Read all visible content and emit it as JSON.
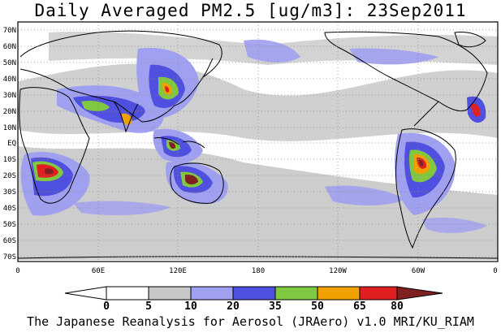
{
  "title": "Daily Averaged PM2.5 [ug/m3]: 23Sep2011",
  "footer": "The Japanese Reanalysis for Aerosol (JRAero) v1.0 MRI/KU_RIAM",
  "map": {
    "projection": "cylindrical equidistant",
    "lon_range": [
      0,
      360
    ],
    "lat_range": [
      -75,
      75
    ],
    "grid": "dotted",
    "lat_ticks": [
      "70N",
      "60N",
      "50N",
      "40N",
      "30N",
      "20N",
      "10N",
      "EQ",
      "10S",
      "20S",
      "30S",
      "40S",
      "50S",
      "60S",
      "70S"
    ],
    "lon_ticks": [
      "0",
      "60E",
      "120E",
      "180",
      "120W",
      "60W",
      "0"
    ]
  },
  "colorbar": {
    "labels": [
      "0",
      "5",
      "10",
      "20",
      "35",
      "50",
      "65",
      "80"
    ],
    "colors": [
      "#ffffff",
      "#c8c8c8",
      "#a0a0f0",
      "#5050e0",
      "#80c840",
      "#f0a000",
      "#e02020",
      "#802020"
    ]
  }
}
